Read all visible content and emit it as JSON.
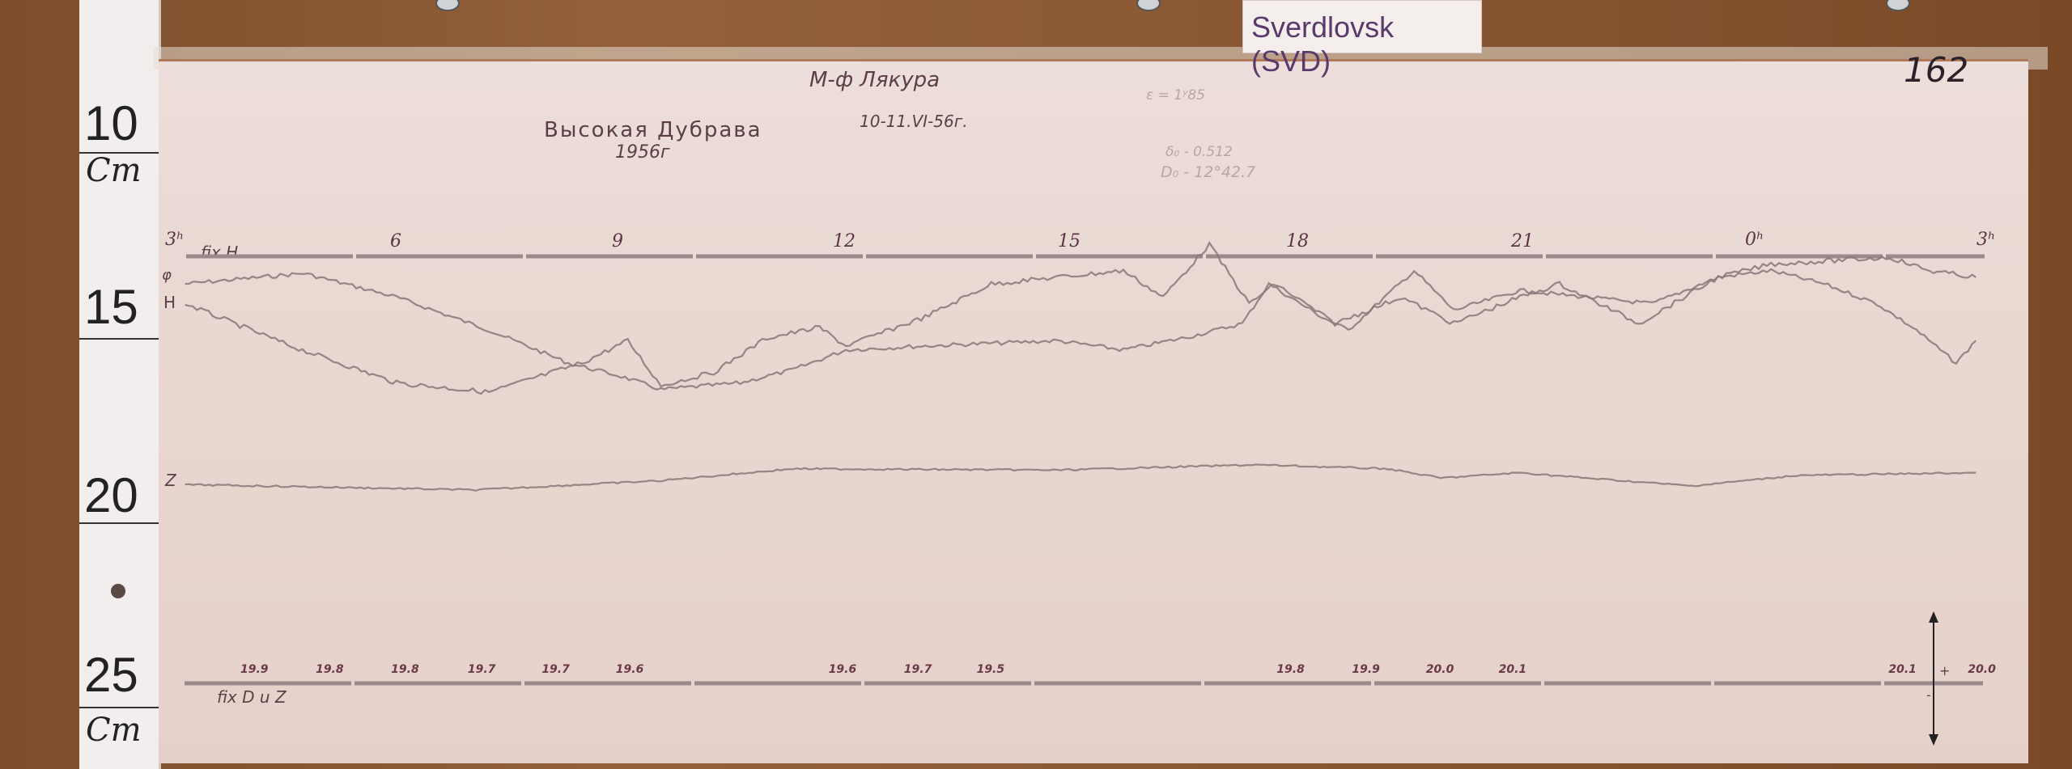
{
  "station_label": "Sverdlovsk (SVD)",
  "sheet_number": "162",
  "ruler": {
    "marks": [
      {
        "value": "10",
        "unit": "Cm"
      },
      {
        "value": "15"
      },
      {
        "value": "20"
      },
      {
        "value": "25",
        "unit": "Cm"
      }
    ]
  },
  "header": {
    "observatory": "Высокая Дубрава",
    "year": "1956г",
    "magnetometer": "М-ф Лякура",
    "date": "10-11.VI-56г."
  },
  "constants": {
    "line1": "ε = 1ʸ85",
    "line2": "δ₀ - 0.512",
    "line3": "D₀ - 12°42.7"
  },
  "top_scale": {
    "label": "fix H",
    "trace_labels": [
      "φ",
      "H"
    ],
    "hours": [
      "3ʰ",
      "6",
      "9",
      "12",
      "15",
      "18",
      "21",
      "0ʰ",
      "3ʰ"
    ]
  },
  "z_trace_label": "Z",
  "bottom_scale": {
    "label": "fix D u Z",
    "values": [
      "19.9",
      "19.8",
      "19.8",
      "19.7",
      "19.7",
      "19.6",
      "19.6",
      "19.7",
      "19.5",
      "19.8",
      "19.9",
      "20.0",
      "20.1",
      "20.1",
      "20.0"
    ],
    "arrow_plus": "+",
    "arrow_minus": "-"
  },
  "colors": {
    "wood": "#8a5834",
    "paper": "#e9d7d1",
    "trace": "#8a7478",
    "ink": "#5c3e48"
  }
}
